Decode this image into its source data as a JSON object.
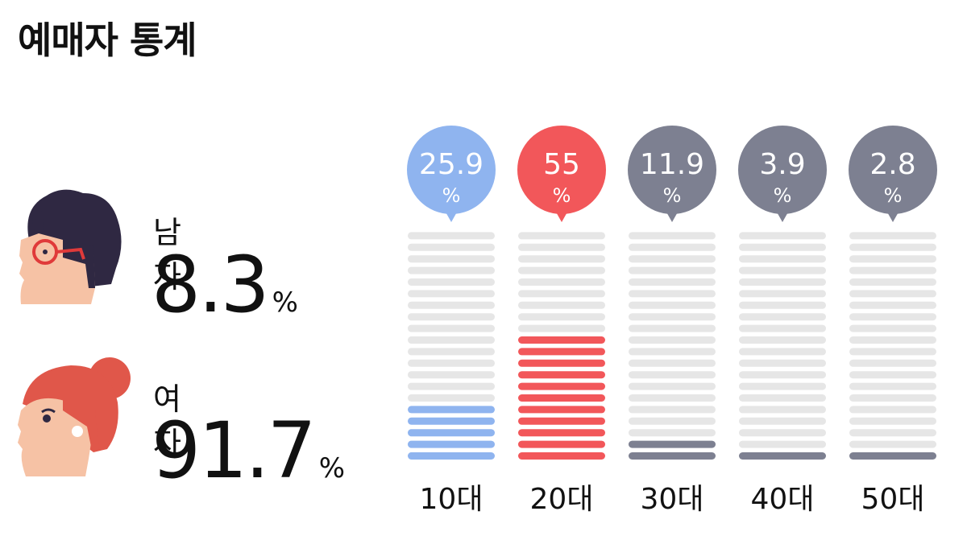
{
  "title": "예매자 통계",
  "gender": {
    "male": {
      "label": "남자",
      "value": "8.3",
      "unit": "%"
    },
    "female": {
      "label": "여자",
      "value": "91.7",
      "unit": "%"
    }
  },
  "icons": {
    "male": "man-with-glasses-icon",
    "female": "woman-with-bun-icon"
  },
  "chart_data": {
    "type": "bar",
    "categories": [
      "10대",
      "20대",
      "30대",
      "40대",
      "50대"
    ],
    "values": [
      25.9,
      55,
      11.9,
      3.9,
      2.8
    ],
    "value_unit": "%",
    "ylim": [
      0,
      100
    ],
    "colors": [
      "#8fb4ef",
      "#f2575a",
      "#7d8091",
      "#7d8091",
      "#7d8091"
    ],
    "track_color": "#e6e6e6",
    "xlabel": "",
    "ylabel": ""
  }
}
